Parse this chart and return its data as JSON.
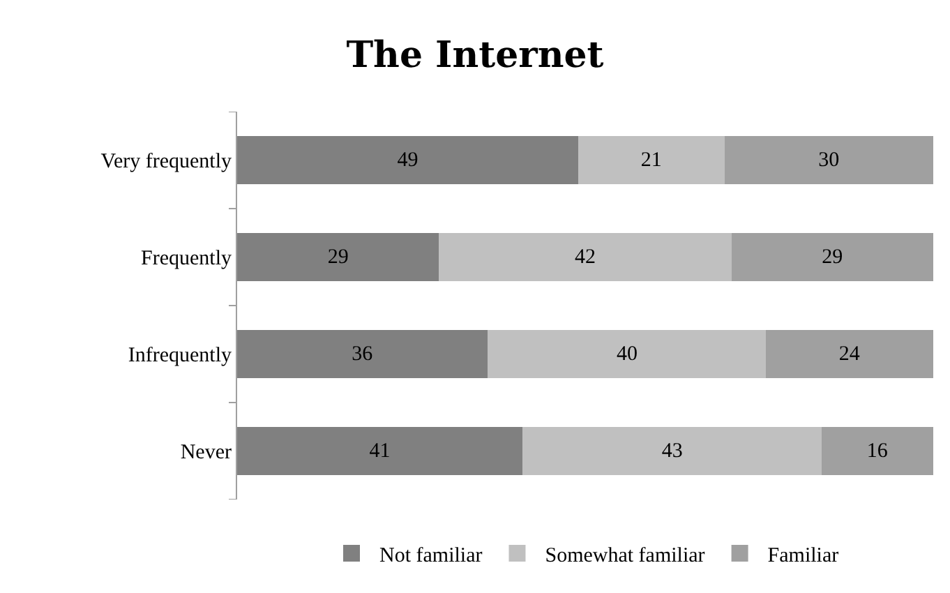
{
  "chart_data": {
    "type": "bar",
    "title": "The Internet",
    "orientation": "horizontal",
    "stacked": true,
    "categories": [
      "Very frequently",
      "Frequently",
      "Infrequently",
      "Never"
    ],
    "series": [
      {
        "name": "Not familiar",
        "color": "#808080",
        "values": [
          49,
          29,
          36,
          41
        ]
      },
      {
        "name": "Somewhat familiar",
        "color": "#c0c0c0",
        "values": [
          21,
          42,
          40,
          43
        ]
      },
      {
        "name": "Familiar",
        "color": "#a0a0a0",
        "values": [
          30,
          29,
          24,
          16
        ]
      }
    ],
    "xlim": [
      0,
      100
    ],
    "data_labels": true,
    "legend": "bottom",
    "tick_labels": "y"
  }
}
